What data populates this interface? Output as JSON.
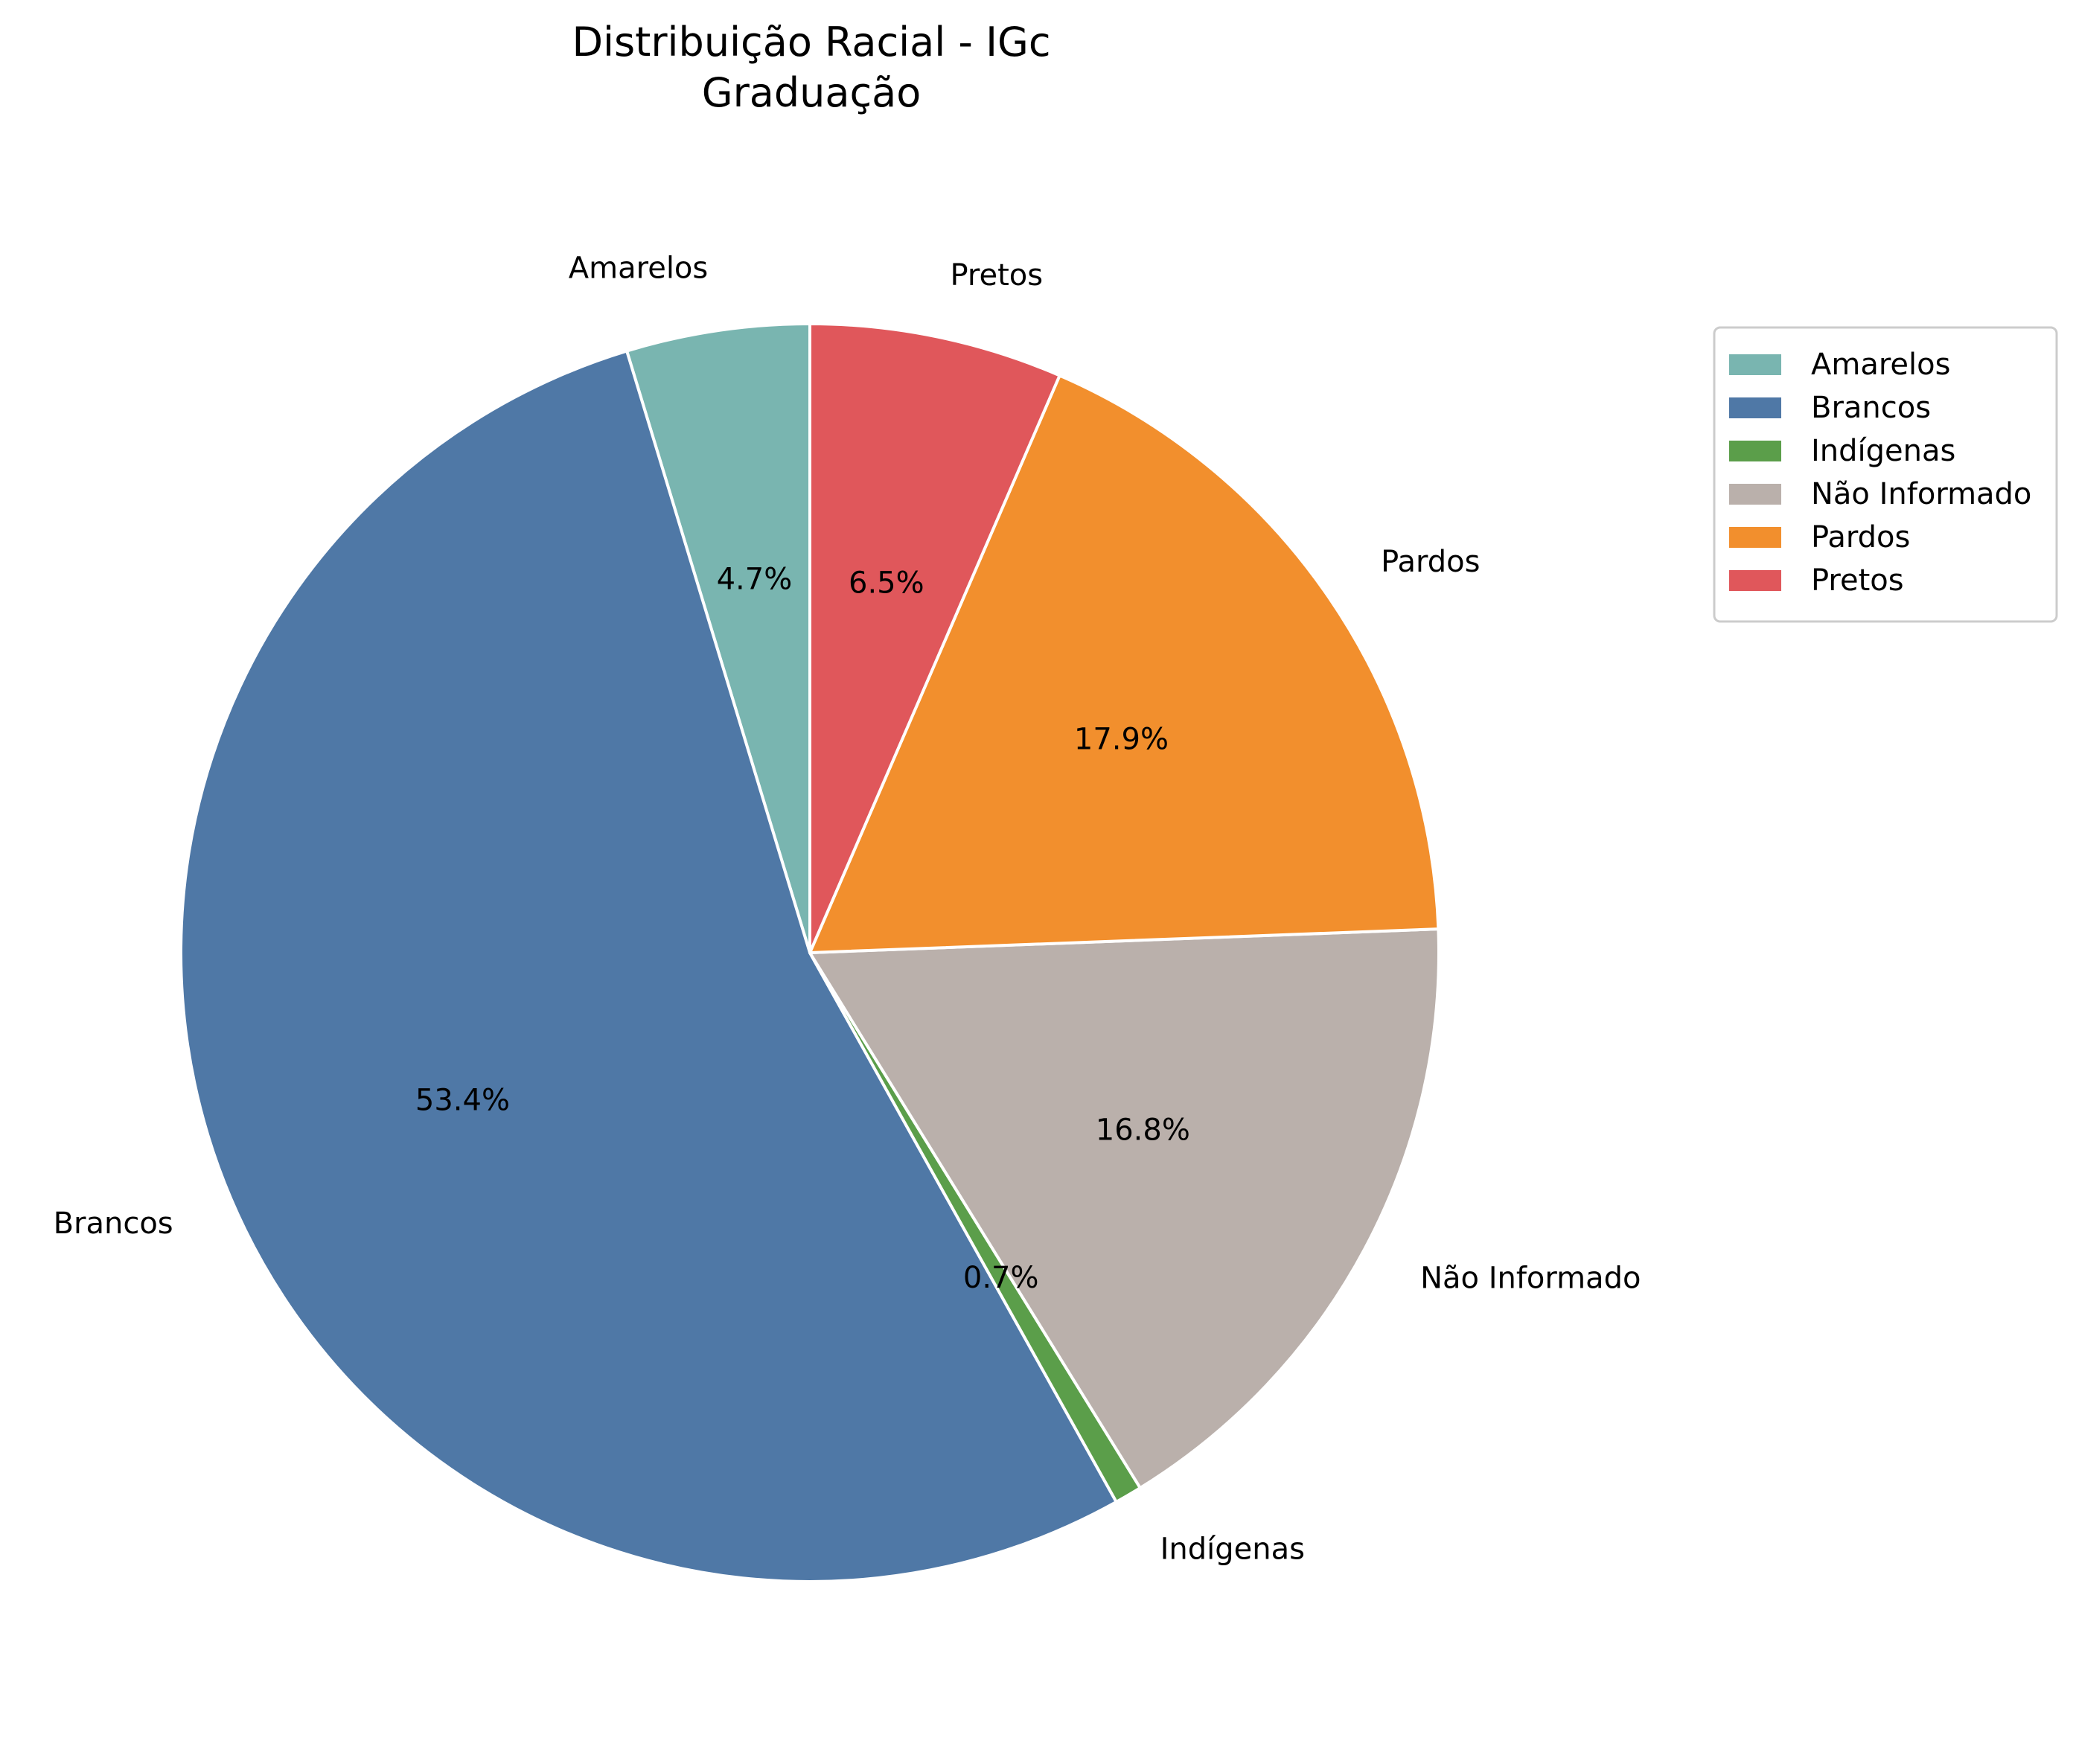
{
  "chart_data": {
    "type": "pie",
    "title_lines": [
      "Distribuição Racial - IGc",
      "Graduação"
    ],
    "slices": [
      {
        "label": "Amarelos",
        "value": 4.7,
        "pct_label": "4.7%",
        "color": "#79b5b0"
      },
      {
        "label": "Brancos",
        "value": 53.4,
        "pct_label": "53.4%",
        "color": "#4f78a6"
      },
      {
        "label": "Indígenas",
        "value": 0.7,
        "pct_label": "0.7%",
        "color": "#5b9e4a"
      },
      {
        "label": "Não Informado",
        "value": 16.8,
        "pct_label": "16.8%",
        "color": "#bab0ab"
      },
      {
        "label": "Pardos",
        "value": 17.9,
        "pct_label": "17.9%",
        "color": "#f28f2d"
      },
      {
        "label": "Pretos",
        "value": 6.5,
        "pct_label": "6.5%",
        "color": "#e0575b"
      }
    ],
    "start_angle_deg": 90,
    "direction": "counterclockwise",
    "legend_position": "upper-right outside",
    "legend": [
      "Amarelos",
      "Brancos",
      "Indígenas",
      "Não Informado",
      "Pardos",
      "Pretos"
    ]
  }
}
